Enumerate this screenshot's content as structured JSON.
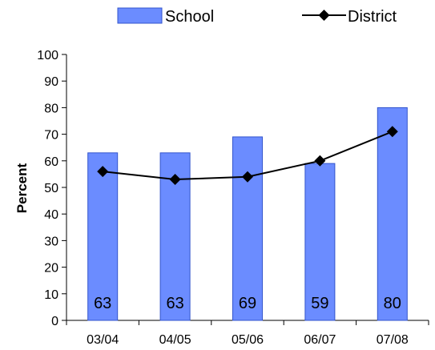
{
  "chart_data": {
    "type": "bar",
    "categories": [
      "03/04",
      "04/05",
      "05/06",
      "06/07",
      "07/08"
    ],
    "series": [
      {
        "name": "School",
        "type": "bar",
        "values": [
          63,
          63,
          69,
          59,
          80
        ],
        "color": "#6b8cff"
      },
      {
        "name": "District",
        "type": "line",
        "values": [
          56,
          53,
          54,
          60,
          71
        ],
        "color": "#000000"
      }
    ],
    "ylabel": "Percent",
    "ylim": [
      0,
      100
    ],
    "yticks": [
      0,
      10,
      20,
      30,
      40,
      50,
      60,
      70,
      80,
      90,
      100
    ],
    "grid": false,
    "legend": "top-center"
  }
}
